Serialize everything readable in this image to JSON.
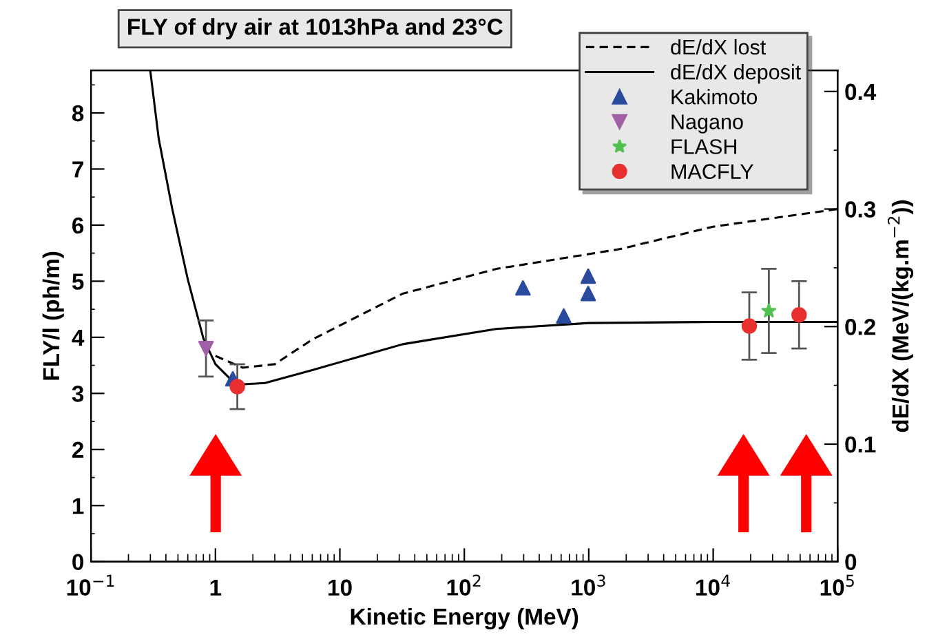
{
  "chart_data": {
    "type": "scatter",
    "title": "FLY of dry air at 1013hPa and 23°C",
    "xlabel": "Kinetic Energy (MeV)",
    "ylabel": "FLY/l (ph/m)",
    "y2label": "dE/dX (MeV/(kg.m$^{−2}$))",
    "log": "x",
    "legend": "top right",
    "grid": false,
    "xlim": [
      0.1,
      100000
    ],
    "xticks": [
      {
        "value": 0.1,
        "label": "10$^{−1}$"
      },
      1,
      10,
      {
        "value": 100,
        "label": "10$^{2}$"
      },
      {
        "value": 1000,
        "label": "10$^{3}$"
      },
      {
        "value": 10000,
        "label": "10$^{4}$"
      },
      {
        "value": 100000,
        "label": "10$^{5}$"
      }
    ],
    "ylim": [
      0,
      8.76
    ],
    "yticks": [
      0,
      1,
      2,
      3,
      4,
      5,
      6,
      7,
      8
    ],
    "y2lim": [
      0,
      0.418
    ],
    "y2ticks": [
      0,
      0.1,
      0.2,
      0.3,
      0.4
    ],
    "series": [
      {
        "name": "dE/dX lost",
        "type": "line",
        "axis": "y2",
        "color": "#000000",
        "line_style": "dashed",
        "marker": "none",
        "x": [
          1,
          1.66,
          3,
          6,
          32,
          180,
          1800,
          10000,
          100000
        ],
        "values": [
          0.175,
          0.165,
          0.168,
          0.189,
          0.228,
          0.249,
          0.266,
          0.285,
          0.3
        ]
      },
      {
        "name": "dE/dX deposit",
        "type": "line",
        "axis": "y2",
        "color": "#000000",
        "line_style": "solid",
        "marker": "none",
        "x": [
          0.3,
          0.35,
          0.45,
          0.6,
          0.8,
          1,
          1.3,
          1.7,
          2.5,
          6,
          32,
          180,
          1000,
          10000,
          100000
        ],
        "values": [
          0.417,
          0.36,
          0.3,
          0.24,
          0.19,
          0.168,
          0.156,
          0.151,
          0.152,
          0.163,
          0.185,
          0.198,
          0.203,
          0.204,
          0.204
        ]
      },
      {
        "name": "Kakimoto",
        "color": "#2a4a9e",
        "marker": "triangle",
        "x": [
          1.38,
          296,
          630,
          990,
          990
        ],
        "values": [
          3.26,
          4.88,
          4.38,
          5.09,
          4.78
        ]
      },
      {
        "name": "Nagano",
        "color": "#a060a8",
        "marker": "triangle_down",
        "x": [
          0.84
        ],
        "values": [
          3.8
        ],
        "errors": [
          0.5
        ]
      },
      {
        "name": "FLASH",
        "color": "#50c050",
        "marker": "star",
        "x": [
          28000
        ],
        "values": [
          4.47
        ],
        "errors": [
          0.75
        ]
      },
      {
        "name": "MACFLY",
        "color": "#e83030",
        "marker": "circle",
        "x": [
          1.5,
          19500,
          49000
        ],
        "values": [
          3.12,
          4.2,
          4.4
        ],
        "errors": [
          0.4,
          0.6,
          0.6
        ]
      }
    ]
  }
}
